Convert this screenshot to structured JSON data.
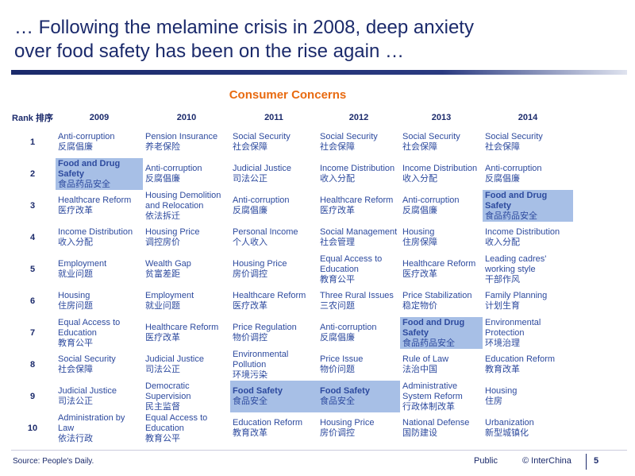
{
  "header": {
    "title_lines": [
      "… Following the melamine crisis in 2008, deep anxiety",
      "over food safety has been on the rise again …"
    ]
  },
  "table": {
    "title": "Consumer Concerns",
    "columns": [
      "Rank 排序",
      "2009",
      "2010",
      "2011",
      "2012",
      "2013",
      "2014"
    ],
    "rows": [
      {
        "rank": "1",
        "cells": [
          {
            "en": "Anti-corruption",
            "zh": "反腐倡廉"
          },
          {
            "en": "Pension Insurance",
            "zh": "养老保险"
          },
          {
            "en": "Social Security",
            "zh": "社会保障"
          },
          {
            "en": "Social Security",
            "zh": "社会保障"
          },
          {
            "en": "Social Security",
            "zh": "社会保障"
          },
          {
            "en": "Social Security",
            "zh": "社会保障"
          }
        ]
      },
      {
        "rank": "2",
        "cells": [
          {
            "en": "Food and Drug Safety",
            "zh": "食品药品安全",
            "highlight": true
          },
          {
            "en": "Anti-corruption",
            "zh": "反腐倡廉"
          },
          {
            "en": "Judicial Justice",
            "zh": "司法公正"
          },
          {
            "en": "Income Distribution",
            "zh": "收入分配"
          },
          {
            "en": "Income Distribution",
            "zh": "收入分配"
          },
          {
            "en": "Anti-corruption",
            "zh": "反腐倡廉"
          }
        ]
      },
      {
        "rank": "3",
        "cells": [
          {
            "en": "Healthcare Reform",
            "zh": "医疗改革"
          },
          {
            "en": "Housing Demolition and Relocation",
            "zh": "依法拆迁"
          },
          {
            "en": "Anti-corruption",
            "zh": "反腐倡廉"
          },
          {
            "en": "Healthcare Reform",
            "zh": "医疗改革"
          },
          {
            "en": "Anti-corruption",
            "zh": "反腐倡廉"
          },
          {
            "en": "Food and Drug Safety",
            "zh": "食品药品安全",
            "highlight": true
          }
        ]
      },
      {
        "rank": "4",
        "cells": [
          {
            "en": "Income Distribution",
            "zh": "收入分配"
          },
          {
            "en": "Housing Price",
            "zh": "调控房价"
          },
          {
            "en": "Personal Income",
            "zh": "个人收入"
          },
          {
            "en": "Social Management",
            "zh": "社会管理"
          },
          {
            "en": "Housing",
            "zh": "住房保障"
          },
          {
            "en": "Income Distribution",
            "zh": "收入分配"
          }
        ]
      },
      {
        "rank": "5",
        "cells": [
          {
            "en": "Employment",
            "zh": "就业问题"
          },
          {
            "en": "Wealth Gap",
            "zh": "贫富差距"
          },
          {
            "en": "Housing Price",
            "zh": "房价调控"
          },
          {
            "en": "Equal Access to Education",
            "zh": "教育公平"
          },
          {
            "en": "Healthcare Reform",
            "zh": "医疗改革"
          },
          {
            "en": "Leading cadres' working style",
            "zh": "干部作风"
          }
        ]
      },
      {
        "rank": "6",
        "cells": [
          {
            "en": "Housing",
            "zh": "住房问题"
          },
          {
            "en": "Employment",
            "zh": "就业问题"
          },
          {
            "en": "Healthcare Reform",
            "zh": "医疗改革"
          },
          {
            "en": "Three Rural Issues",
            "zh": "三农问题"
          },
          {
            "en": "Price Stabilization",
            "zh": "稳定物价"
          },
          {
            "en": "Family Planning",
            "zh": "计划生育"
          }
        ]
      },
      {
        "rank": "7",
        "cells": [
          {
            "en": "Equal Access to Education",
            "zh": "教育公平"
          },
          {
            "en": "Healthcare Reform",
            "zh": "医疗改革"
          },
          {
            "en": "Price Regulation",
            "zh": "物价调控"
          },
          {
            "en": "Anti-corruption",
            "zh": "反腐倡廉"
          },
          {
            "en": "Food and Drug Safety",
            "zh": "食品药品安全",
            "highlight": true
          },
          {
            "en": "Environmental Protection",
            "zh": "环境治理"
          }
        ]
      },
      {
        "rank": "8",
        "cells": [
          {
            "en": "Social Security",
            "zh": "社会保障"
          },
          {
            "en": "Judicial Justice",
            "zh": "司法公正"
          },
          {
            "en": "Environmental Pollution",
            "zh": "环境污染"
          },
          {
            "en": "Price Issue",
            "zh": "物价问题"
          },
          {
            "en": "Rule of Law",
            "zh": "法治中国"
          },
          {
            "en": "Education Reform",
            "zh": "教育改革"
          }
        ]
      },
      {
        "rank": "9",
        "cells": [
          {
            "en": "Judicial Justice",
            "zh": "司法公正"
          },
          {
            "en": "Democratic Supervision",
            "zh": "民主监督"
          },
          {
            "en": "Food Safety",
            "zh": "食品安全",
            "highlight": true
          },
          {
            "en": "Food Safety",
            "zh": "食品安全",
            "highlight": true
          },
          {
            "en": "Administrative System Reform",
            "zh": "行政体制改革"
          },
          {
            "en": "Housing",
            "zh": "住房"
          }
        ]
      },
      {
        "rank": "10",
        "cells": [
          {
            "en": "Administration by Law",
            "zh": "依法行政"
          },
          {
            "en": "Equal Access to Education",
            "zh": "教育公平"
          },
          {
            "en": "Education Reform",
            "zh": "教育改革"
          },
          {
            "en": "Housing Price",
            "zh": "房价调控"
          },
          {
            "en": "National Defense",
            "zh": "国防建设"
          },
          {
            "en": "Urbanization",
            "zh": "新型城镇化"
          }
        ]
      }
    ]
  },
  "footer": {
    "source": "Source: People's Daily.",
    "classification": "Public",
    "company": "© InterChina",
    "page": "5"
  }
}
